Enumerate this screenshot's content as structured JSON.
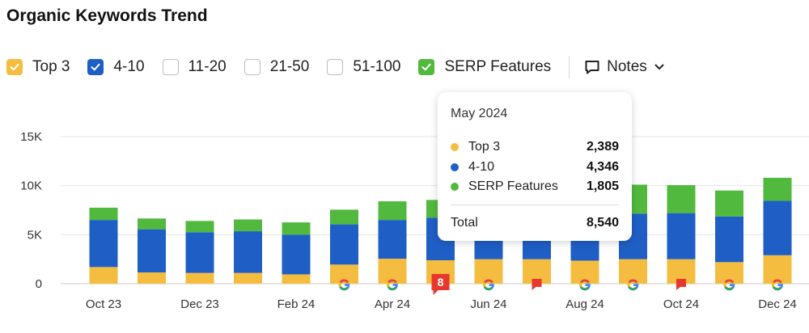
{
  "title": "Organic Keywords Trend",
  "filters": [
    {
      "label": "Top 3",
      "checked": true,
      "color": "#f5bd3f"
    },
    {
      "label": "4-10",
      "checked": true,
      "color": "#1f5fc5"
    },
    {
      "label": "11-20",
      "checked": false,
      "color": ""
    },
    {
      "label": "21-50",
      "checked": false,
      "color": ""
    },
    {
      "label": "51-100",
      "checked": false,
      "color": ""
    },
    {
      "label": "SERP Features",
      "checked": true,
      "color": "#51b93d"
    }
  ],
  "notes_label": "Notes",
  "tooltip": {
    "title": "May 2024",
    "rows": [
      {
        "name": "Top 3",
        "value": "2,389",
        "color": "#f5bd3f"
      },
      {
        "name": "4-10",
        "value": "4,346",
        "color": "#1f5fc5"
      },
      {
        "name": "SERP Features",
        "value": "1,805",
        "color": "#51b93d"
      }
    ],
    "total_label": "Total",
    "total_value": "8,540"
  },
  "chart_data": {
    "type": "bar",
    "stacked": true,
    "categories": [
      "Oct 23",
      "Nov 23",
      "Dec 23",
      "Jan 24",
      "Feb 24",
      "Mar 24",
      "Apr 24",
      "May 24",
      "Jun 24",
      "Jul 24",
      "Aug 24",
      "Sep 24",
      "Oct 24",
      "Nov 24",
      "Dec 24"
    ],
    "x_tick_labels": [
      "Oct 23",
      "",
      "Dec 23",
      "",
      "Feb 24",
      "",
      "Apr 24",
      "",
      "Jun 24",
      "",
      "Aug 24",
      "",
      "Oct 24",
      "",
      "Dec 24"
    ],
    "series": [
      {
        "name": "Top 3",
        "color": "#f5bd3f",
        "values": [
          1700,
          1150,
          1100,
          1100,
          950,
          1950,
          2550,
          2389,
          2500,
          2500,
          2350,
          2500,
          2500,
          2200,
          2900
        ]
      },
      {
        "name": "4-10",
        "color": "#1f5fc5",
        "values": [
          4800,
          4400,
          4150,
          4250,
          4050,
          4100,
          3950,
          4346,
          4400,
          4400,
          4650,
          4650,
          4700,
          4650,
          5550
        ]
      },
      {
        "name": "SERP Features",
        "color": "#51b93d",
        "values": [
          1250,
          1100,
          1150,
          1200,
          1250,
          1500,
          1900,
          1805,
          1700,
          1700,
          3050,
          2950,
          2850,
          2650,
          2350
        ]
      }
    ],
    "y_ticks": [
      0,
      5000,
      10000,
      15000
    ],
    "y_tick_labels": [
      "0",
      "5K",
      "10K",
      "15K"
    ],
    "ylim": [
      0,
      15000
    ],
    "grid": true,
    "markers": [
      "",
      "",
      "",
      "",
      "",
      "google",
      "google",
      "note:8",
      "google",
      "note",
      "google",
      "google",
      "note",
      "google",
      "google"
    ]
  }
}
